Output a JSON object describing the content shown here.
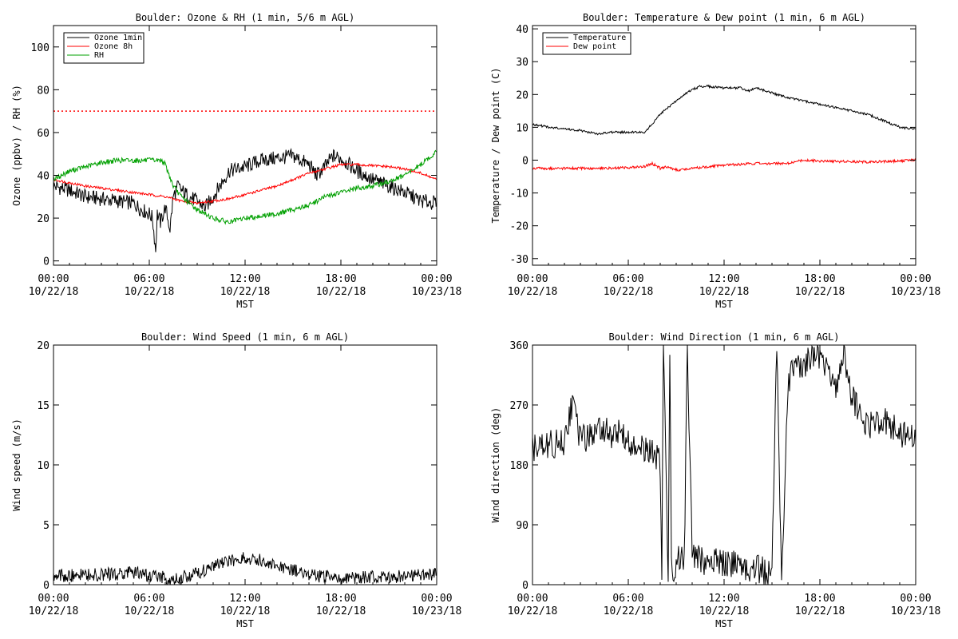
{
  "colors": {
    "black": "#000000",
    "red": "#ff0000",
    "green": "#00a000"
  },
  "chart_data": [
    {
      "type": "line",
      "title": "Boulder: Ozone & RH (1 min, 5/6 m AGL)",
      "xlabel": "MST",
      "ylabel": "Ozone (ppbv) / RH (%)",
      "xlim": [
        0,
        24
      ],
      "ylim": [
        -2,
        110
      ],
      "yticks": [
        0,
        20,
        40,
        60,
        80,
        100
      ],
      "xtick_labels": [
        [
          "00:00",
          "10/22/18"
        ],
        [
          "06:00",
          "10/22/18"
        ],
        [
          "12:00",
          "10/22/18"
        ],
        [
          "18:00",
          "10/22/18"
        ],
        [
          "00:00",
          "10/23/18"
        ]
      ],
      "legend_position": "top-left",
      "reference_line": {
        "y": 70,
        "style": "dotted",
        "color": "#ff0000"
      },
      "series": [
        {
          "name": "Ozone 1min",
          "color": "#000000",
          "x": [
            0,
            1,
            2,
            3,
            4,
            5,
            5.5,
            6,
            6.2,
            6.4,
            6.5,
            6.7,
            7,
            7.3,
            7.5,
            7.8,
            8,
            8.5,
            9,
            9.5,
            10,
            10.5,
            11,
            12,
            13,
            14,
            15,
            16,
            16.5,
            17,
            17.5,
            18,
            19,
            20,
            21,
            22,
            23,
            24
          ],
          "y": [
            35,
            33,
            30,
            29,
            28,
            27,
            24,
            22,
            20,
            5,
            22,
            18,
            25,
            15,
            30,
            35,
            33,
            30,
            28,
            25,
            30,
            36,
            42,
            44,
            47,
            48,
            49,
            45,
            40,
            44,
            49,
            48,
            42,
            38,
            35,
            32,
            28,
            27
          ]
        },
        {
          "name": "Ozone 8h",
          "color": "#ff0000",
          "x": [
            0,
            2,
            4,
            6,
            7,
            8,
            9,
            10,
            11,
            12,
            13,
            14,
            15,
            16,
            17,
            18,
            19,
            20,
            21,
            22,
            23,
            24
          ],
          "y": [
            38,
            35,
            33,
            31,
            30,
            28,
            27,
            28,
            29,
            31,
            33,
            35,
            38,
            41,
            43,
            45,
            45,
            44.5,
            44,
            43,
            41,
            38
          ]
        },
        {
          "name": "RH",
          "color": "#00a000",
          "x": [
            0,
            1,
            2,
            3,
            4,
            5,
            6,
            6.8,
            7,
            7.5,
            8,
            8.5,
            9,
            10,
            11,
            12,
            13,
            14,
            15,
            16,
            17,
            18,
            19,
            20,
            21,
            22,
            23,
            24
          ],
          "y": [
            38,
            42,
            44,
            46,
            47,
            47,
            47,
            47,
            45,
            35,
            30,
            27,
            24,
            20,
            18,
            20,
            21,
            22,
            24,
            26,
            30,
            32,
            34,
            35,
            37,
            40,
            45,
            51
          ]
        }
      ]
    },
    {
      "type": "line",
      "title": "Boulder: Temperature & Dew point (1 min, 6 m AGL)",
      "xlabel": "MST",
      "ylabel": "Temperature / Dew point (C)",
      "xlim": [
        0,
        24
      ],
      "ylim": [
        -32,
        41
      ],
      "yticks": [
        -30,
        -20,
        -10,
        0,
        10,
        20,
        30,
        40
      ],
      "xtick_labels": [
        [
          "00:00",
          "10/22/18"
        ],
        [
          "06:00",
          "10/22/18"
        ],
        [
          "12:00",
          "10/22/18"
        ],
        [
          "18:00",
          "10/22/18"
        ],
        [
          "00:00",
          "10/23/18"
        ]
      ],
      "legend_position": "top-left",
      "series": [
        {
          "name": "Temperature",
          "color": "#000000",
          "x": [
            0,
            1,
            2,
            3,
            4,
            5,
            6,
            7,
            7.5,
            8,
            8.5,
            9,
            9.5,
            10,
            10.5,
            11,
            12,
            13,
            13.5,
            14,
            15,
            16,
            17,
            18,
            19,
            20,
            21,
            22,
            23,
            24
          ],
          "y": [
            11,
            10,
            9.5,
            9,
            8,
            8.5,
            8.5,
            8.5,
            11,
            14,
            16,
            18,
            20,
            21.5,
            22.5,
            22.5,
            22,
            22,
            21,
            22,
            20.5,
            19,
            18,
            17,
            16,
            15,
            14,
            12,
            10,
            9.5
          ]
        },
        {
          "name": "Dew point",
          "color": "#ff0000",
          "x": [
            0,
            2,
            4,
            6,
            7,
            7.5,
            8,
            8.5,
            9,
            10,
            11,
            12,
            13,
            14,
            15,
            16,
            17,
            18,
            20,
            22,
            24
          ],
          "y": [
            -2.5,
            -2.5,
            -2.5,
            -2.3,
            -2,
            -1,
            -2.5,
            -2,
            -3,
            -2.5,
            -2,
            -1.5,
            -1.3,
            -1,
            -1,
            -1,
            0,
            -0.3,
            -0.5,
            -0.5,
            0
          ]
        }
      ]
    },
    {
      "type": "line",
      "title": "Boulder: Wind Speed (1 min, 6 m AGL)",
      "xlabel": "MST",
      "ylabel": "Wind speed (m/s)",
      "xlim": [
        0,
        24
      ],
      "ylim": [
        0,
        20
      ],
      "yticks": [
        0,
        5,
        10,
        15,
        20
      ],
      "xtick_labels": [
        [
          "00:00",
          "10/22/18"
        ],
        [
          "06:00",
          "10/22/18"
        ],
        [
          "12:00",
          "10/22/18"
        ],
        [
          "18:00",
          "10/22/18"
        ],
        [
          "00:00",
          "10/23/18"
        ]
      ],
      "series": [
        {
          "color": "#000000",
          "x": [
            0,
            2,
            4,
            5,
            6,
            7,
            7.5,
            8,
            9,
            10,
            11,
            12,
            13,
            14,
            15,
            16,
            17,
            18,
            19,
            20,
            21,
            22,
            23,
            24
          ],
          "y": [
            0.7,
            0.8,
            0.9,
            1.0,
            0.8,
            0.6,
            0.3,
            0.6,
            1.0,
            1.5,
            2.0,
            2.3,
            2.0,
            1.5,
            1.2,
            0.8,
            0.7,
            0.6,
            0.6,
            0.7,
            0.6,
            0.7,
            0.8,
            0.9
          ]
        }
      ]
    },
    {
      "type": "line",
      "title": "Boulder: Wind Direction (1 min, 6 m AGL)",
      "xlabel": "MST",
      "ylabel": "Wind direction (deg)",
      "xlim": [
        0,
        24
      ],
      "ylim": [
        0,
        360
      ],
      "yticks": [
        0,
        90,
        180,
        270,
        360
      ],
      "xtick_labels": [
        [
          "00:00",
          "10/22/18"
        ],
        [
          "06:00",
          "10/22/18"
        ],
        [
          "12:00",
          "10/22/18"
        ],
        [
          "18:00",
          "10/22/18"
        ],
        [
          "00:00",
          "10/23/18"
        ]
      ],
      "series": [
        {
          "color": "#000000",
          "x": [
            0,
            1,
            2,
            2.5,
            3,
            4,
            4.5,
            5,
            5.5,
            6,
            6.5,
            7,
            7.5,
            8,
            8.1,
            8.2,
            8.5,
            8.6,
            8.7,
            9,
            9.2,
            9.5,
            9.7,
            10,
            11,
            12,
            13,
            14,
            14.5,
            15,
            15.3,
            15.6,
            16,
            16.5,
            17,
            17.5,
            18,
            18.5,
            19,
            19.5,
            20,
            21,
            22,
            23,
            24
          ],
          "y": [
            205,
            210,
            215,
            270,
            220,
            225,
            235,
            215,
            230,
            215,
            210,
            205,
            200,
            180,
            0,
            360,
            0,
            360,
            20,
            30,
            45,
            30,
            360,
            40,
            35,
            35,
            30,
            25,
            20,
            15,
            360,
            10,
            300,
            340,
            320,
            350,
            345,
            330,
            300,
            350,
            280,
            240,
            250,
            230,
            215
          ]
        }
      ]
    }
  ]
}
